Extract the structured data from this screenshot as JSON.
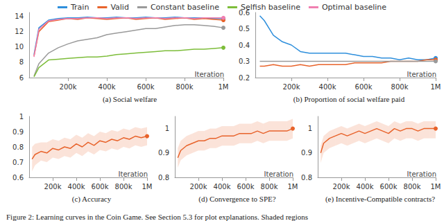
{
  "caption": "Figure 2: Learning curves in the Coin Game. See Section 5.3 for plot explanations. Shaded regions",
  "chart_data": [
    {
      "type": "line",
      "title": "(a) Social welfare",
      "xlabel": "Iteration",
      "legend": "top",
      "grid": false,
      "marker": "circle",
      "x": [
        25000,
        50000,
        100000,
        150000,
        200000,
        250000,
        300000,
        350000,
        400000,
        450000,
        500000,
        550000,
        600000,
        650000,
        700000,
        750000,
        800000,
        850000,
        900000,
        950000,
        1000000
      ],
      "xlim": [
        0,
        1000000
      ],
      "xticks": [
        {
          "value": 200000,
          "label": "200k"
        },
        {
          "value": 400000,
          "label": "400k"
        },
        {
          "value": 600000,
          "label": "600k"
        },
        {
          "value": 800000,
          "label": "800k"
        },
        {
          "value": 1000000,
          "label": "1M"
        }
      ],
      "ylim": [
        6,
        14.5
      ],
      "yticks": [
        6,
        8,
        10,
        12,
        14
      ],
      "series": [
        {
          "name": "Train",
          "color": "#2e8fdc",
          "values": [
            9.0,
            12.5,
            13.5,
            13.7,
            13.8,
            13.8,
            13.9,
            13.8,
            13.8,
            13.9,
            13.8,
            13.8,
            13.9,
            13.8,
            13.8,
            13.9,
            13.8,
            13.8,
            13.8,
            13.7,
            13.7
          ]
        },
        {
          "name": "Valid",
          "color": "#e8632b",
          "values": [
            8.8,
            12.0,
            13.3,
            13.5,
            13.7,
            13.6,
            13.8,
            13.7,
            13.6,
            13.7,
            13.8,
            13.6,
            13.7,
            13.8,
            13.6,
            13.7,
            13.8,
            13.6,
            13.7,
            13.6,
            13.5
          ]
        },
        {
          "name": "Constant baseline",
          "color": "#9a9a9a",
          "values": [
            6.2,
            7.8,
            9.2,
            9.9,
            10.4,
            10.8,
            11.0,
            11.2,
            11.6,
            11.8,
            12.0,
            12.2,
            12.4,
            12.4,
            12.6,
            12.8,
            12.9,
            12.9,
            12.8,
            12.7,
            12.5
          ]
        },
        {
          "name": "Selfish baseline",
          "color": "#7dbd3a",
          "values": [
            6.1,
            7.3,
            8.3,
            8.4,
            8.5,
            8.6,
            8.7,
            8.7,
            8.8,
            9.0,
            9.1,
            9.2,
            9.3,
            9.4,
            9.5,
            9.5,
            9.6,
            9.7,
            9.7,
            9.8,
            9.9
          ]
        },
        {
          "name": "Optimal baseline",
          "color": "#f07fb0",
          "values": [
            8.7,
            12.3,
            13.4,
            13.6,
            13.7,
            13.7,
            13.8,
            13.8,
            13.7,
            13.8,
            13.8,
            13.7,
            13.8,
            13.8,
            13.7,
            13.8,
            13.8,
            13.7,
            13.8,
            13.8,
            13.8
          ]
        }
      ]
    },
    {
      "type": "line",
      "title": "(b) Proportion of social welfare paid",
      "xlabel": "Iteration",
      "grid": false,
      "marker": "circle",
      "x": [
        25000,
        50000,
        100000,
        150000,
        200000,
        250000,
        300000,
        350000,
        400000,
        450000,
        500000,
        550000,
        600000,
        650000,
        700000,
        750000,
        800000,
        850000,
        900000,
        950000,
        1000000
      ],
      "xlim": [
        0,
        1000000
      ],
      "xticks": [
        {
          "value": 200000,
          "label": "200k"
        },
        {
          "value": 400000,
          "label": "400k"
        },
        {
          "value": 600000,
          "label": "600k"
        },
        {
          "value": 800000,
          "label": "800k"
        },
        {
          "value": 1000000,
          "label": "1M"
        }
      ],
      "ylim": [
        0.2,
        0.6
      ],
      "yticks": [
        0.2,
        0.3,
        0.4,
        0.5,
        0.6
      ],
      "series": [
        {
          "name": "Train",
          "color": "#2e8fdc",
          "values": [
            0.58,
            0.55,
            0.46,
            0.42,
            0.4,
            0.36,
            0.35,
            0.35,
            0.35,
            0.35,
            0.35,
            0.34,
            0.33,
            0.33,
            0.32,
            0.32,
            0.31,
            0.32,
            0.31,
            0.31,
            0.32
          ]
        },
        {
          "name": "Valid",
          "color": "#e8632b",
          "values": [
            0.27,
            0.27,
            0.28,
            0.27,
            0.27,
            0.28,
            0.27,
            0.28,
            0.28,
            0.28,
            0.28,
            0.29,
            0.29,
            0.29,
            0.29,
            0.3,
            0.3,
            0.3,
            0.3,
            0.31,
            0.31
          ]
        },
        {
          "name": "Constant baseline",
          "color": "#9a9a9a",
          "values": [
            0.3,
            0.3,
            0.3,
            0.3,
            0.3,
            0.3,
            0.3,
            0.3,
            0.3,
            0.3,
            0.3,
            0.3,
            0.3,
            0.3,
            0.3,
            0.3,
            0.3,
            0.3,
            0.3,
            0.3,
            0.3
          ]
        }
      ]
    },
    {
      "type": "line",
      "title": "(c) Accuracy",
      "xlabel": "Iteration",
      "grid": false,
      "marker": "circle",
      "x": [
        25000,
        50000,
        100000,
        150000,
        200000,
        250000,
        300000,
        350000,
        400000,
        450000,
        500000,
        550000,
        600000,
        650000,
        700000,
        750000,
        800000,
        850000,
        900000,
        950000,
        1000000
      ],
      "xlim": [
        0,
        1000000
      ],
      "xticks": [
        {
          "value": 200000,
          "label": "200k"
        },
        {
          "value": 400000,
          "label": "400k"
        },
        {
          "value": 600000,
          "label": "600k"
        },
        {
          "value": 800000,
          "label": "800k"
        },
        {
          "value": 1000000,
          "label": "1M"
        }
      ],
      "ylim": [
        0.6,
        1
      ],
      "yticks": [
        0.6,
        0.7,
        0.8,
        0.9,
        1
      ],
      "series": [
        {
          "name": "Valid",
          "color": "#e8632b",
          "values": [
            0.72,
            0.75,
            0.77,
            0.76,
            0.79,
            0.78,
            0.8,
            0.79,
            0.82,
            0.8,
            0.83,
            0.81,
            0.84,
            0.83,
            0.85,
            0.84,
            0.86,
            0.85,
            0.87,
            0.86,
            0.87
          ],
          "band": {
            "lower": [
              0.64,
              0.68,
              0.71,
              0.7,
              0.73,
              0.72,
              0.74,
              0.73,
              0.76,
              0.74,
              0.77,
              0.75,
              0.78,
              0.77,
              0.79,
              0.78,
              0.8,
              0.79,
              0.81,
              0.8,
              0.81
            ],
            "upper": [
              0.8,
              0.82,
              0.83,
              0.83,
              0.85,
              0.84,
              0.86,
              0.85,
              0.88,
              0.86,
              0.89,
              0.87,
              0.9,
              0.89,
              0.91,
              0.9,
              0.92,
              0.91,
              0.93,
              0.92,
              0.93
            ]
          }
        }
      ]
    },
    {
      "type": "line",
      "title": "(d) Convergence to SPE?",
      "xlabel": "Iteration",
      "grid": false,
      "marker": "circle",
      "x": [
        25000,
        50000,
        100000,
        150000,
        200000,
        250000,
        300000,
        350000,
        400000,
        450000,
        500000,
        550000,
        600000,
        650000,
        700000,
        750000,
        800000,
        850000,
        900000,
        950000,
        1000000
      ],
      "xlim": [
        0,
        1000000
      ],
      "xticks": [
        {
          "value": 200000,
          "label": "200k"
        },
        {
          "value": 400000,
          "label": "400k"
        },
        {
          "value": 600000,
          "label": "600k"
        },
        {
          "value": 800000,
          "label": "800k"
        },
        {
          "value": 1000000,
          "label": "1M"
        }
      ],
      "ylim": [
        0.8,
        1.05
      ],
      "yticks": [
        0.8,
        0.9,
        1
      ],
      "series": [
        {
          "name": "Valid",
          "color": "#e8632b",
          "values": [
            0.88,
            0.91,
            0.93,
            0.94,
            0.95,
            0.95,
            0.96,
            0.96,
            0.97,
            0.97,
            0.97,
            0.98,
            0.98,
            0.98,
            0.99,
            0.98,
            0.99,
            0.99,
            0.99,
            0.99,
            1.0
          ],
          "band": {
            "lower": [
              0.84,
              0.87,
              0.89,
              0.9,
              0.91,
              0.91,
              0.92,
              0.92,
              0.93,
              0.93,
              0.93,
              0.94,
              0.94,
              0.94,
              0.95,
              0.94,
              0.95,
              0.95,
              0.95,
              0.95,
              0.96
            ],
            "upper": [
              0.92,
              0.95,
              0.97,
              0.98,
              0.99,
              0.99,
              1.0,
              1.0,
              1.01,
              1.01,
              1.01,
              1.02,
              1.02,
              1.02,
              1.03,
              1.02,
              1.03,
              1.03,
              1.03,
              1.03,
              1.04
            ]
          }
        }
      ]
    },
    {
      "type": "line",
      "title": "(e) Incentive-Compatible contracts?",
      "xlabel": "Iteration",
      "grid": false,
      "marker": "circle",
      "x": [
        25000,
        50000,
        100000,
        150000,
        200000,
        250000,
        300000,
        350000,
        400000,
        450000,
        500000,
        550000,
        600000,
        650000,
        700000,
        750000,
        800000,
        850000,
        900000,
        950000,
        1000000
      ],
      "xlim": [
        0,
        1000000
      ],
      "xticks": [
        {
          "value": 200000,
          "label": "200k"
        },
        {
          "value": 400000,
          "label": "400k"
        },
        {
          "value": 600000,
          "label": "600k"
        },
        {
          "value": 800000,
          "label": "800k"
        },
        {
          "value": 1000000,
          "label": "1M"
        }
      ],
      "ylim": [
        0.8,
        1.05
      ],
      "yticks": [
        0.8,
        0.9,
        1
      ],
      "series": [
        {
          "name": "Valid",
          "color": "#e8632b",
          "values": [
            0.9,
            0.94,
            0.96,
            0.97,
            0.98,
            0.97,
            0.98,
            0.99,
            0.98,
            0.99,
            1.0,
            0.99,
            0.98,
            1.0,
            0.99,
            1.0,
            1.0,
            0.99,
            1.0,
            1.0,
            1.0
          ],
          "band": {
            "lower": [
              0.86,
              0.9,
              0.92,
              0.93,
              0.94,
              0.93,
              0.94,
              0.95,
              0.94,
              0.95,
              0.96,
              0.95,
              0.94,
              0.96,
              0.95,
              0.96,
              0.96,
              0.95,
              0.96,
              0.96,
              0.96
            ],
            "upper": [
              0.93,
              0.97,
              0.99,
              1.0,
              1.01,
              1.0,
              1.01,
              1.02,
              1.01,
              1.02,
              1.03,
              1.02,
              1.01,
              1.03,
              1.02,
              1.03,
              1.03,
              1.02,
              1.03,
              1.03,
              1.03
            ]
          }
        }
      ]
    }
  ]
}
